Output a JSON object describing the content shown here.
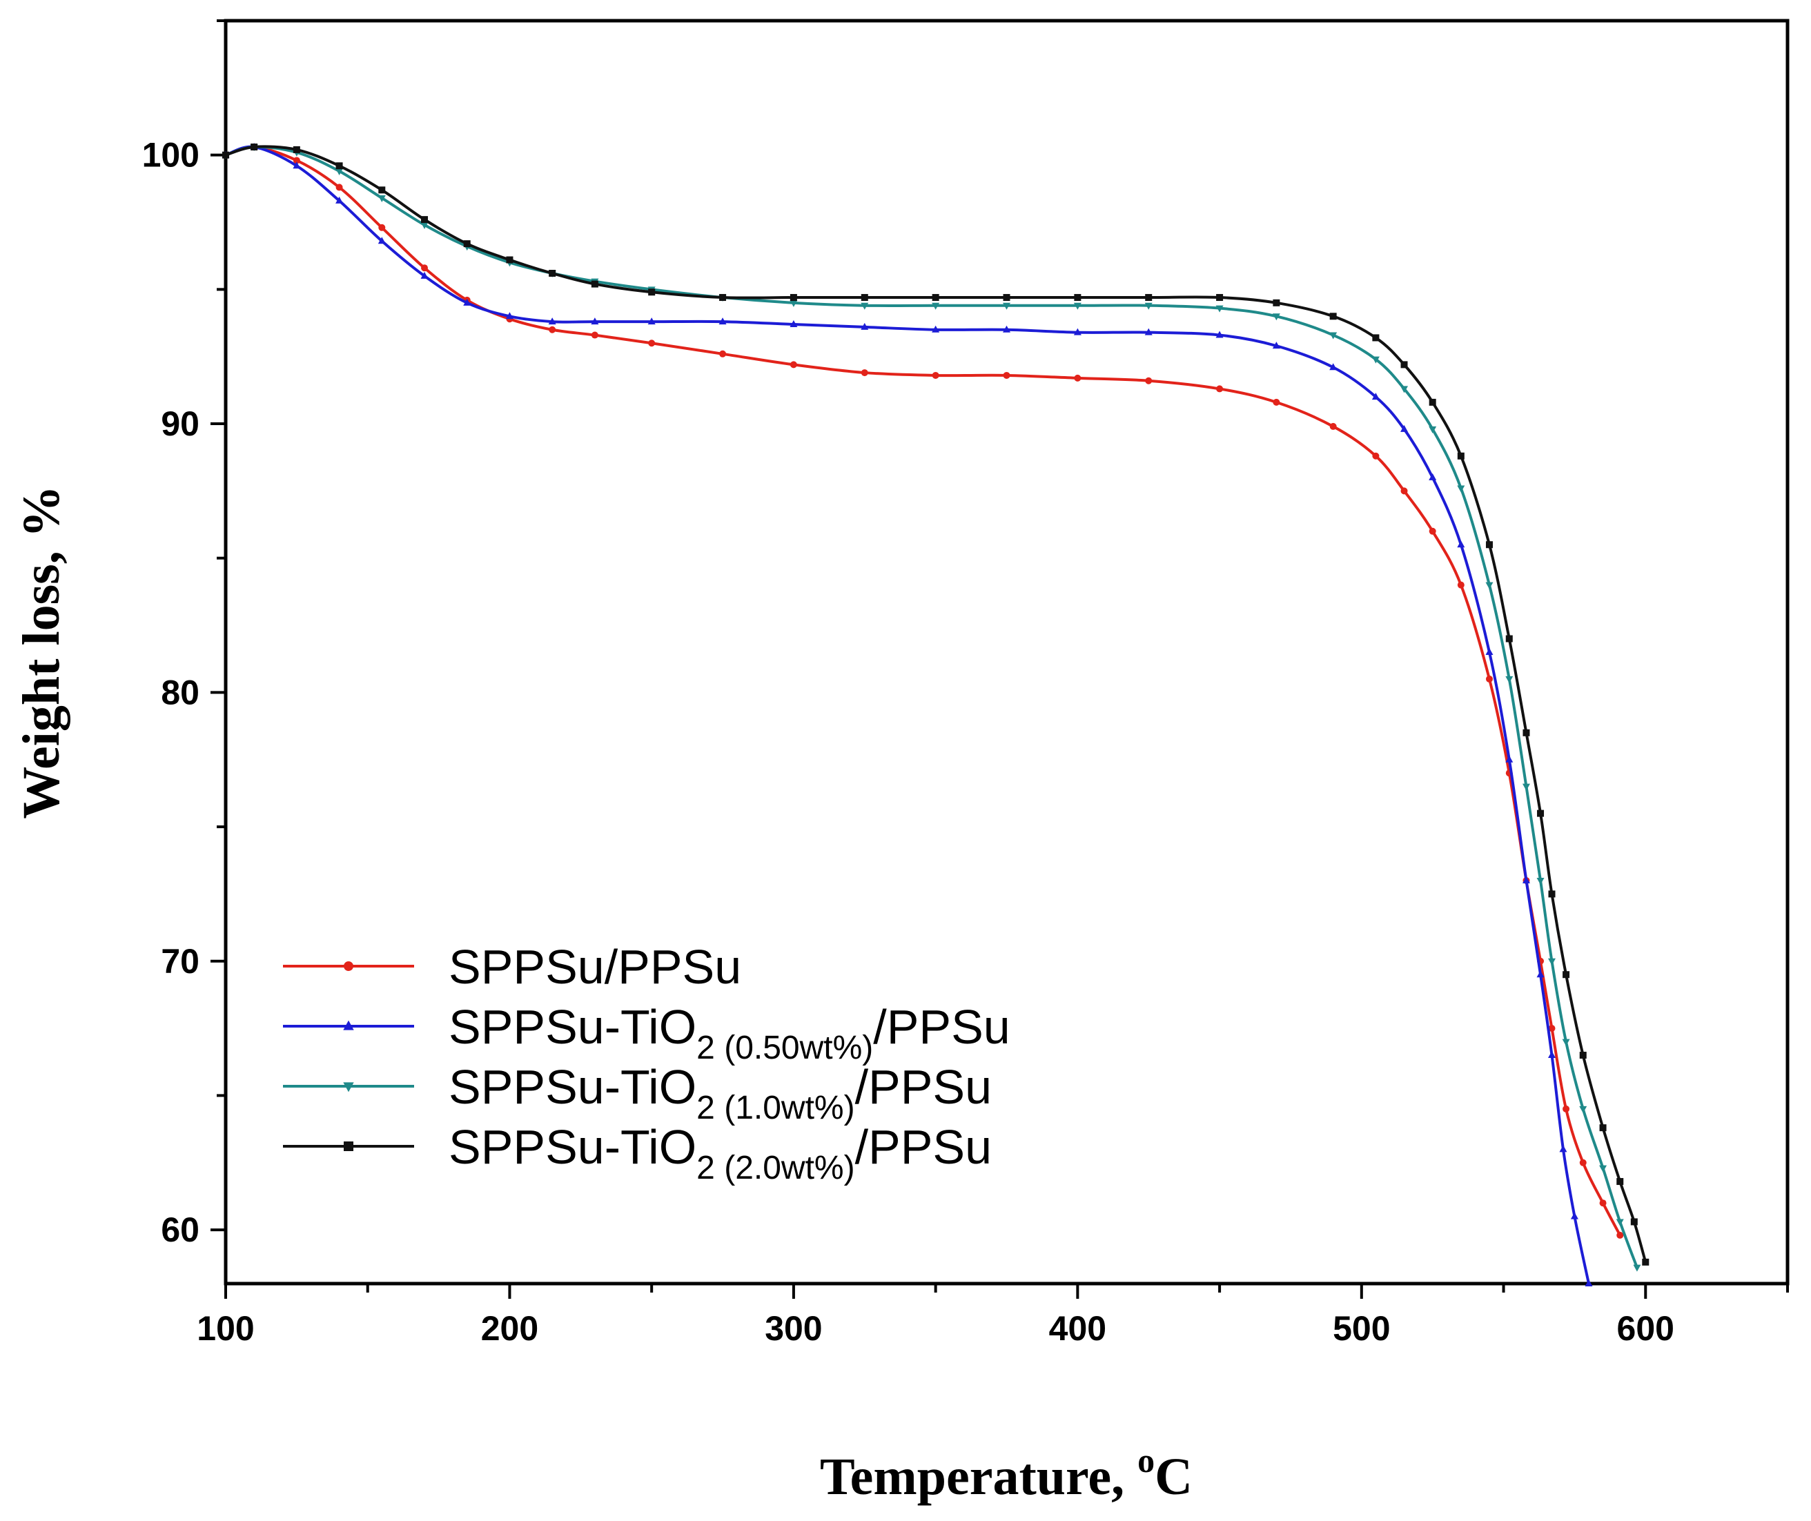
{
  "chart_data": {
    "type": "line",
    "title": "",
    "xlabel": "Temperature, ",
    "xlabel_sup": "o",
    "xlabel_unit": "C",
    "ylabel": "Weight loss, %",
    "xlim": [
      100,
      650
    ],
    "ylim": [
      58,
      105
    ],
    "xticks": [
      100,
      200,
      300,
      400,
      500,
      600
    ],
    "yticks": [
      60,
      70,
      80,
      90,
      100
    ],
    "legend_position": "lower-left",
    "series": [
      {
        "name": "SPPSu/PPSu",
        "legend_parts": [
          "SPPSu/PPSu"
        ],
        "color": "#e2231a",
        "marker": "circle",
        "x": [
          100,
          110,
          125,
          140,
          155,
          170,
          185,
          200,
          215,
          230,
          250,
          275,
          300,
          325,
          350,
          375,
          400,
          425,
          450,
          470,
          490,
          505,
          515,
          525,
          535,
          545,
          552,
          558,
          563,
          567,
          572,
          578,
          585,
          591
        ],
        "y": [
          100,
          100.3,
          99.8,
          98.8,
          97.3,
          95.8,
          94.6,
          93.9,
          93.5,
          93.3,
          93.0,
          92.6,
          92.2,
          91.9,
          91.8,
          91.8,
          91.7,
          91.6,
          91.3,
          90.8,
          89.9,
          88.8,
          87.5,
          86.0,
          84.0,
          80.5,
          77.0,
          73.0,
          70.0,
          67.5,
          64.5,
          62.5,
          61.0,
          59.8
        ]
      },
      {
        "name": "SPPSu-TiO2 (0.50wt%)/PPSu",
        "legend_parts": [
          "SPPSu-TiO",
          "2",
          " (0.50wt%)",
          "/PPSu"
        ],
        "color": "#1c1cd6",
        "marker": "triangle-up",
        "x": [
          100,
          110,
          125,
          140,
          155,
          170,
          185,
          200,
          215,
          230,
          250,
          275,
          300,
          325,
          350,
          375,
          400,
          425,
          450,
          470,
          490,
          505,
          515,
          525,
          535,
          545,
          552,
          558,
          563,
          567,
          571,
          575,
          580
        ],
        "y": [
          100,
          100.3,
          99.6,
          98.3,
          96.8,
          95.5,
          94.5,
          94.0,
          93.8,
          93.8,
          93.8,
          93.8,
          93.7,
          93.6,
          93.5,
          93.5,
          93.4,
          93.4,
          93.3,
          92.9,
          92.1,
          91.0,
          89.8,
          88.0,
          85.5,
          81.5,
          77.5,
          73.0,
          69.5,
          66.5,
          63.0,
          60.5,
          58.0
        ]
      },
      {
        "name": "SPPSu-TiO2 (1.0wt%)/PPSu",
        "legend_parts": [
          "SPPSu-TiO",
          "2",
          " (1.0wt%)",
          "/PPSu"
        ],
        "color": "#1f8a8a",
        "marker": "triangle-down",
        "x": [
          100,
          110,
          125,
          140,
          155,
          170,
          185,
          200,
          215,
          230,
          250,
          275,
          300,
          325,
          350,
          375,
          400,
          425,
          450,
          470,
          490,
          505,
          515,
          525,
          535,
          545,
          552,
          558,
          563,
          567,
          572,
          578,
          585,
          591,
          597
        ],
        "y": [
          100,
          100.3,
          100.1,
          99.4,
          98.4,
          97.4,
          96.6,
          96.0,
          95.6,
          95.3,
          95.0,
          94.7,
          94.5,
          94.4,
          94.4,
          94.4,
          94.4,
          94.4,
          94.3,
          94.0,
          93.3,
          92.4,
          91.3,
          89.8,
          87.6,
          84.0,
          80.5,
          76.5,
          73.0,
          70.0,
          67.0,
          64.5,
          62.3,
          60.3,
          58.6
        ]
      },
      {
        "name": "SPPSu-TiO2 (2.0wt%)/PPSu",
        "legend_parts": [
          "SPPSu-TiO",
          "2",
          " (2.0wt%)",
          "/PPSu"
        ],
        "color": "#111111",
        "marker": "square",
        "x": [
          100,
          110,
          125,
          140,
          155,
          170,
          185,
          200,
          215,
          230,
          250,
          275,
          300,
          325,
          350,
          375,
          400,
          425,
          450,
          470,
          490,
          505,
          515,
          525,
          535,
          545,
          552,
          558,
          563,
          567,
          572,
          578,
          585,
          591,
          596,
          600
        ],
        "y": [
          100,
          100.3,
          100.2,
          99.6,
          98.7,
          97.6,
          96.7,
          96.1,
          95.6,
          95.2,
          94.9,
          94.7,
          94.7,
          94.7,
          94.7,
          94.7,
          94.7,
          94.7,
          94.7,
          94.5,
          94.0,
          93.2,
          92.2,
          90.8,
          88.8,
          85.5,
          82.0,
          78.5,
          75.5,
          72.5,
          69.5,
          66.5,
          63.8,
          61.8,
          60.3,
          58.8
        ]
      }
    ]
  }
}
